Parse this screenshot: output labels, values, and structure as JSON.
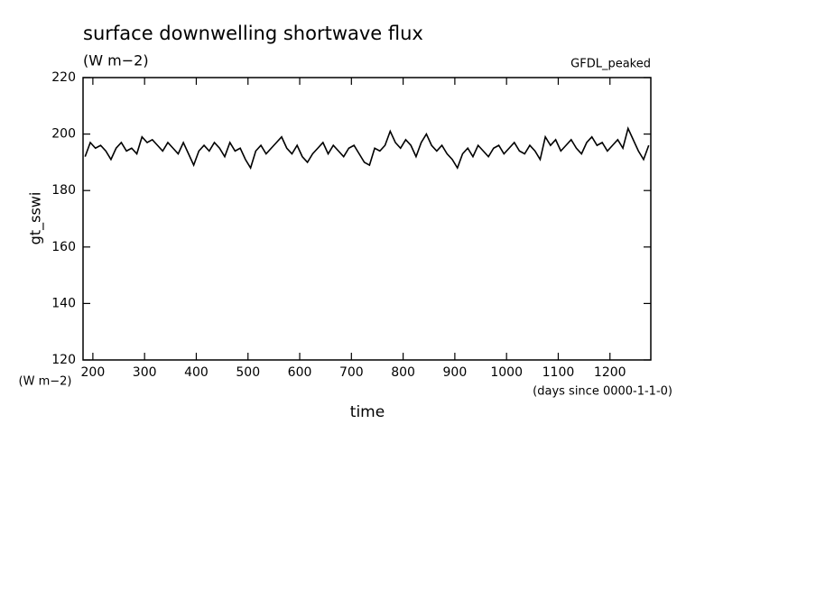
{
  "chart_data": {
    "type": "line",
    "title": "surface downwelling shortwave flux",
    "subtitle": "(W m−2)",
    "annotation": "GFDL_peaked",
    "ylabel": "gt_sswi",
    "y_units": "(W m−2)",
    "xlabel": "time",
    "x_units": "(days since 0000-1-1-0)",
    "xlim": [
      181,
      1279
    ],
    "ylim": [
      120,
      220
    ],
    "xticks": [
      200,
      300,
      400,
      500,
      600,
      700,
      800,
      900,
      1000,
      1100,
      1200
    ],
    "yticks": [
      120,
      140,
      160,
      180,
      200,
      220
    ],
    "x": [
      185,
      195,
      205,
      215,
      225,
      235,
      245,
      255,
      265,
      275,
      285,
      295,
      305,
      315,
      325,
      335,
      345,
      355,
      365,
      375,
      385,
      395,
      405,
      415,
      425,
      435,
      445,
      455,
      465,
      475,
      485,
      495,
      505,
      515,
      525,
      535,
      545,
      555,
      565,
      575,
      585,
      595,
      605,
      615,
      625,
      635,
      645,
      655,
      665,
      675,
      685,
      695,
      705,
      715,
      725,
      735,
      745,
      755,
      765,
      775,
      785,
      795,
      805,
      815,
      825,
      835,
      845,
      855,
      865,
      875,
      885,
      895,
      905,
      915,
      925,
      935,
      945,
      955,
      965,
      975,
      985,
      995,
      1005,
      1015,
      1025,
      1035,
      1045,
      1055,
      1065,
      1075,
      1085,
      1095,
      1105,
      1115,
      1125,
      1135,
      1145,
      1155,
      1165,
      1175,
      1185,
      1195,
      1205,
      1215,
      1225,
      1235,
      1245,
      1255,
      1265,
      1275
    ],
    "series": [
      {
        "color": "#000000",
        "values": [
          192,
          197,
          195,
          196,
          194,
          191,
          195,
          197,
          194,
          195,
          193,
          199,
          197,
          198,
          196,
          194,
          197,
          195,
          193,
          197,
          193,
          189,
          194,
          196,
          194,
          197,
          195,
          192,
          197,
          194,
          195,
          191,
          188,
          194,
          196,
          193,
          195,
          197,
          199,
          195,
          193,
          196,
          192,
          190,
          193,
          195,
          197,
          193,
          196,
          194,
          192,
          195,
          196,
          193,
          190,
          189,
          195,
          194,
          196,
          201,
          197,
          195,
          198,
          196,
          192,
          197,
          200,
          196,
          194,
          196,
          193,
          191,
          188,
          193,
          195,
          192,
          196,
          194,
          192,
          195,
          196,
          193,
          195,
          197,
          194,
          193,
          196,
          194,
          191,
          199,
          196,
          198,
          194,
          196,
          198,
          195,
          193,
          197,
          199,
          196,
          197,
          194,
          196,
          198,
          195,
          202,
          198,
          194,
          191,
          196
        ]
      }
    ]
  }
}
